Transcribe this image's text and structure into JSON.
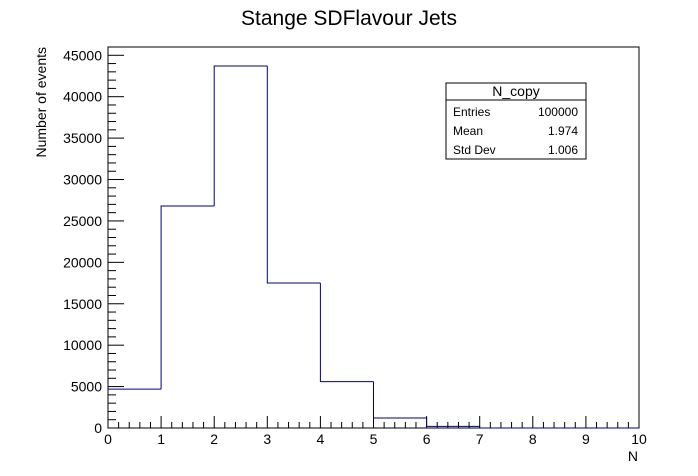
{
  "chart_data": {
    "type": "bar",
    "title": "Stange SDFlavour Jets",
    "xlabel": "N",
    "ylabel": "Number of events",
    "xlim": [
      0,
      10
    ],
    "ylim": [
      0,
      46000
    ],
    "bin_edges": [
      0,
      1,
      2,
      3,
      4,
      5,
      6,
      7,
      8,
      9,
      10
    ],
    "values": [
      4700,
      26800,
      43700,
      17500,
      5600,
      1200,
      200,
      0,
      0,
      0
    ],
    "x_ticks": [
      "0",
      "1",
      "2",
      "3",
      "4",
      "5",
      "6",
      "7",
      "8",
      "9",
      "10"
    ],
    "y_ticks": [
      "0",
      "5000",
      "10000",
      "15000",
      "20000",
      "25000",
      "30000",
      "35000",
      "40000",
      "45000"
    ],
    "line_color": "#000080",
    "stats": {
      "name": "N_copy",
      "rows": [
        {
          "label": "Entries",
          "value": "100000"
        },
        {
          "label": "Mean",
          "value": "1.974"
        },
        {
          "label": "Std Dev",
          "value": "1.006"
        }
      ]
    }
  }
}
